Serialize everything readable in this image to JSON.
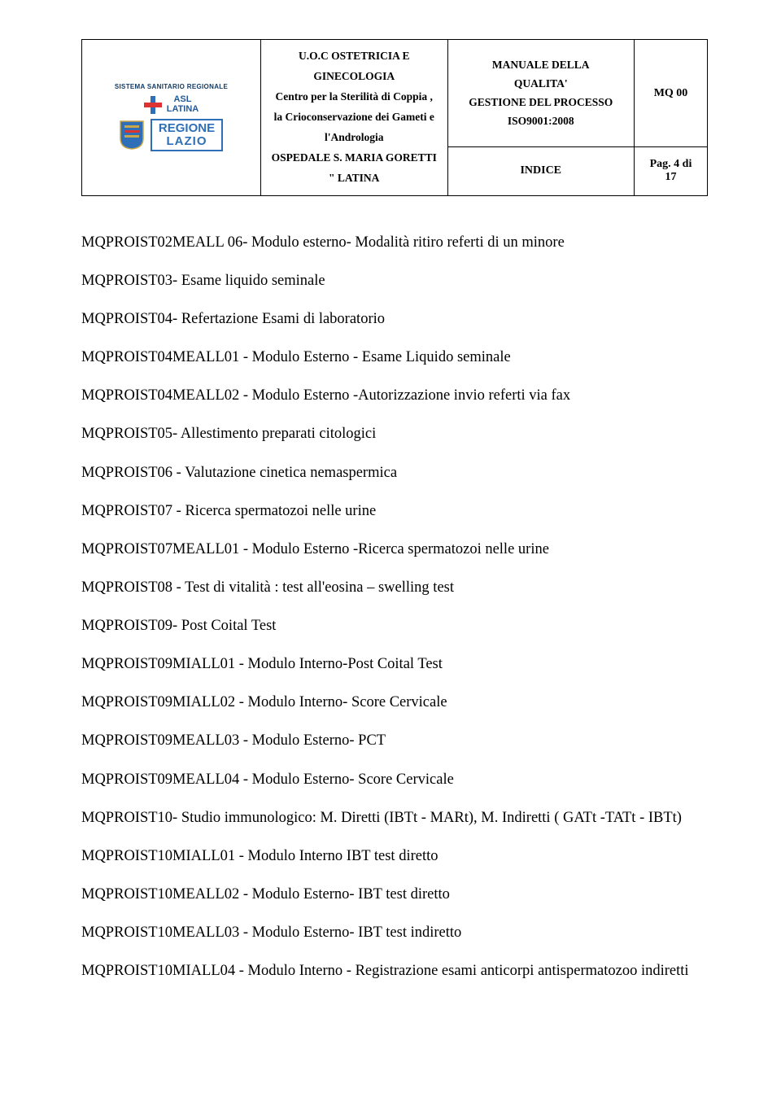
{
  "header": {
    "logo": {
      "ssr_label": "SISTEMA SANITARIO REGIONALE",
      "asl_line1": "ASL",
      "asl_line2": "LATINA",
      "regione_line1": "REGIONE",
      "regione_line2": "LAZIO"
    },
    "center": {
      "line1": "U.O.C OSTETRICIA  E GINECOLOGIA",
      "line2": "Centro per la Sterilità di Coppia ,",
      "line3": "la Crioconservazione dei Gameti e l'Andrologia",
      "line4": "OSPEDALE S. MARIA GORETTI \" LATINA"
    },
    "right_top": {
      "line1": "MANUALE DELLA",
      "line2": "QUALITA'",
      "line3": "GESTIONE DEL PROCESSO",
      "line4": "ISO9001:2008"
    },
    "mq": "MQ 00",
    "indice_label": "INDICE",
    "page_label": "Pag.  4   di 17"
  },
  "items": [
    "MQPROIST02MEALL 06- Modulo esterno- Modalità ritiro referti di un minore",
    "MQPROIST03-  Esame liquido seminale",
    "MQPROIST04-   Refertazione Esami di laboratorio",
    "MQPROIST04MEALL01 - Modulo Esterno -  Esame  Liquido seminale",
    "MQPROIST04MEALL02 - Modulo Esterno -Autorizzazione invio referti via fax",
    "MQPROIST05-  Allestimento preparati citologici",
    "MQPROIST06 -  Valutazione cinetica nemaspermica",
    "MQPROIST07 -  Ricerca spermatozoi nelle urine",
    "MQPROIST07MEALL01 - Modulo Esterno -Ricerca spermatozoi nelle urine",
    "MQPROIST08 - Test di vitalità : test all'eosina – swelling test",
    "MQPROIST09- Post Coital Test",
    "MQPROIST09MIALL01 - Modulo Interno-Post Coital Test",
    "MQPROIST09MIALL02 - Modulo Interno- Score Cervicale",
    "MQPROIST09MEALL03 - Modulo Esterno- PCT",
    "MQPROIST09MEALL04 - Modulo Esterno- Score Cervicale",
    "MQPROIST10-  Studio immunologico: M. Diretti  (IBTt - MARt), M. Indiretti ( GATt -TATt - IBTt)",
    "MQPROIST10MIALL01 - Modulo Interno IBT test diretto",
    "MQPROIST10MEALL02 - Modulo Esterno- IBT test diretto",
    "MQPROIST10MEALL03 - Modulo Esterno- IBT test indiretto",
    "MQPROIST10MIALL04 - Modulo Interno - Registrazione esami anticorpi antispermatozoo indiretti"
  ]
}
